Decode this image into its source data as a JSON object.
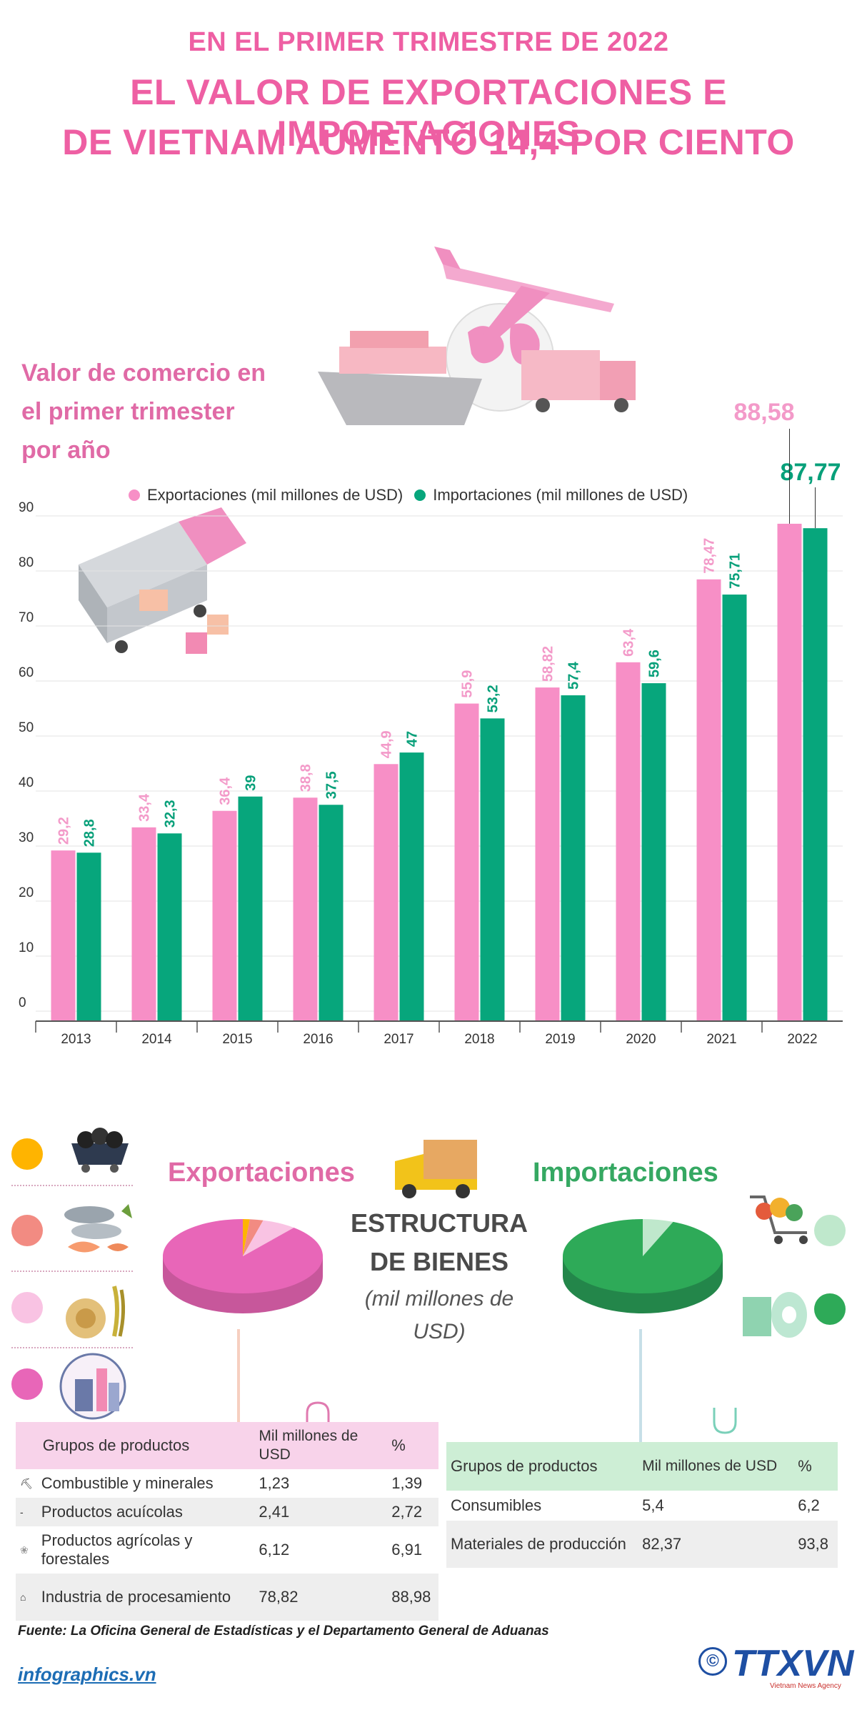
{
  "header": {
    "line1": "EN EL PRIMER TRIMESTRE DE 2022",
    "line2": "EL VALOR DE EXPORTACIONES E IMPORTACIONES",
    "line3": "DE VIETNAM AUMENTÓ 14,4 POR CIENTO"
  },
  "chart_section": {
    "title_line1": "Valor de comercio en",
    "title_line2": "el primer trimester",
    "title_line3": "por año"
  },
  "colors": {
    "export": "#f78fc6",
    "import": "#07a67c",
    "title_pink": "#ee5fa3",
    "import_green_title": "#35a862"
  },
  "chart_data": {
    "type": "bar",
    "categories": [
      "2013",
      "2014",
      "2015",
      "2016",
      "2017",
      "2018",
      "2019",
      "2020",
      "2021",
      "2022"
    ],
    "series": [
      {
        "name": "Exportaciones (mil millones de USD)",
        "values": [
          29.2,
          33.4,
          36.4,
          38.8,
          44.9,
          55.9,
          58.82,
          63.4,
          78.47,
          88.58
        ],
        "labels": [
          "29,2",
          "33,4",
          "36,4",
          "38,8",
          "44,9",
          "55,9",
          "58,82",
          "63,4",
          "78,47",
          "88,58"
        ]
      },
      {
        "name": "Importaciones (mil millones de USD)",
        "values": [
          28.8,
          32.3,
          39,
          37.5,
          47,
          53.2,
          57.4,
          59.6,
          75.71,
          87.77
        ],
        "labels": [
          "28,8",
          "32,3",
          "39",
          "37,5",
          "47",
          "53,2",
          "57,4",
          "59,6",
          "75,71",
          "87,77"
        ]
      }
    ],
    "yticks": [
      "0",
      "10",
      "20",
      "30",
      "40",
      "50",
      "60",
      "70",
      "80",
      "90"
    ],
    "ylim": [
      0,
      90
    ],
    "grid": true,
    "legend_position": "top"
  },
  "structure": {
    "exports_title": "Exportaciones",
    "imports_title": "Importaciones",
    "center_title_1": "ESTRUCTURA",
    "center_title_2": "DE BIENES",
    "center_sub_1": "(mil millones de",
    "center_sub_2": "USD)"
  },
  "export_table": {
    "headers": [
      "Grupos de productos",
      "Mil millones de USD",
      "%"
    ],
    "rows": [
      {
        "group": "Combustible y minerales",
        "value": "1,23",
        "pct": "1,39",
        "color": "#ffb400"
      },
      {
        "group": "Productos acuícolas",
        "value": "2,41",
        "pct": "2,72",
        "color": "#f28b82"
      },
      {
        "group": "Productos agrícolas y forestales",
        "value": "6,12",
        "pct": "6,91",
        "color": "#f9c3e3"
      },
      {
        "group": "Industria de procesamiento",
        "value": "78,82",
        "pct": "88,98",
        "color": "#e866b8"
      }
    ]
  },
  "import_table": {
    "headers": [
      "Grupos de productos",
      "Mil millones de USD",
      "%"
    ],
    "rows": [
      {
        "group": "Consumibles",
        "value": "5,4",
        "pct": "6,2",
        "color": "#bfe8cc"
      },
      {
        "group": "Materiales de producción",
        "value": "82,37",
        "pct": "93,8",
        "color": "#2eaa58"
      }
    ]
  },
  "footer": {
    "source": "Fuente: La Oficina General de Estadísticas y el Departamento General de Aduanas",
    "site": "infographics.vn",
    "brand": "TTXVN",
    "brand_sub": "Vietnam News Agency",
    "copyright": "©"
  }
}
